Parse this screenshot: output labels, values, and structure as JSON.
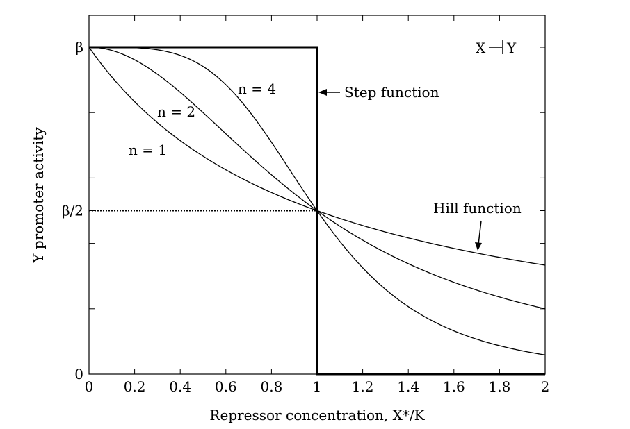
{
  "chart_data": {
    "type": "line",
    "xlabel": "Repressor concentration, X*/K",
    "ylabel": "Y promoter activity",
    "xlim": [
      0,
      2
    ],
    "ylim": [
      0,
      1
    ],
    "x_ticks": [
      "0",
      "0.2",
      "0.4",
      "0.6",
      "0.8",
      "1",
      "1.2",
      "1.4",
      "1.6",
      "1.8",
      "2"
    ],
    "x_tick_values": [
      0,
      0.2,
      0.4,
      0.6,
      0.8,
      1,
      1.2,
      1.4,
      1.6,
      1.8,
      2
    ],
    "y_ticks": [
      {
        "value": 0,
        "label": "0"
      },
      {
        "value": 0.5,
        "label": "β/2"
      },
      {
        "value": 1,
        "label": "β"
      }
    ],
    "y_minor_ticks": [
      0.2,
      0.4,
      0.6,
      0.8
    ],
    "grid": false,
    "series": [
      {
        "name": "n = 1",
        "n": 1,
        "x": [
          0,
          0.2,
          0.4,
          0.6,
          0.8,
          1,
          1.2,
          1.4,
          1.6,
          1.8,
          2
        ],
        "values": [
          1,
          0.833,
          0.714,
          0.625,
          0.556,
          0.5,
          0.455,
          0.417,
          0.385,
          0.357,
          0.333
        ]
      },
      {
        "name": "n = 2",
        "n": 2,
        "x": [
          0,
          0.2,
          0.4,
          0.6,
          0.8,
          1,
          1.2,
          1.4,
          1.6,
          1.8,
          2
        ],
        "values": [
          1,
          0.962,
          0.862,
          0.735,
          0.61,
          0.5,
          0.41,
          0.338,
          0.281,
          0.236,
          0.2
        ]
      },
      {
        "name": "n = 4",
        "n": 4,
        "x": [
          0,
          0.2,
          0.4,
          0.6,
          0.8,
          1,
          1.2,
          1.4,
          1.6,
          1.8,
          2
        ],
        "values": [
          1,
          0.998,
          0.975,
          0.885,
          0.709,
          0.5,
          0.325,
          0.207,
          0.132,
          0.087,
          0.059
        ]
      },
      {
        "name": "Step function",
        "x": [
          0,
          1,
          1,
          2
        ],
        "values": [
          1,
          1,
          0,
          0
        ]
      }
    ],
    "half_max_line": {
      "y": 0.5,
      "x_end": 1
    },
    "annotations": {
      "n1": "n = 1",
      "n2": "n = 2",
      "n4": "n = 4",
      "step": "Step function",
      "hill": "Hill function",
      "legend_x": "X",
      "legend_y": "Y"
    }
  }
}
